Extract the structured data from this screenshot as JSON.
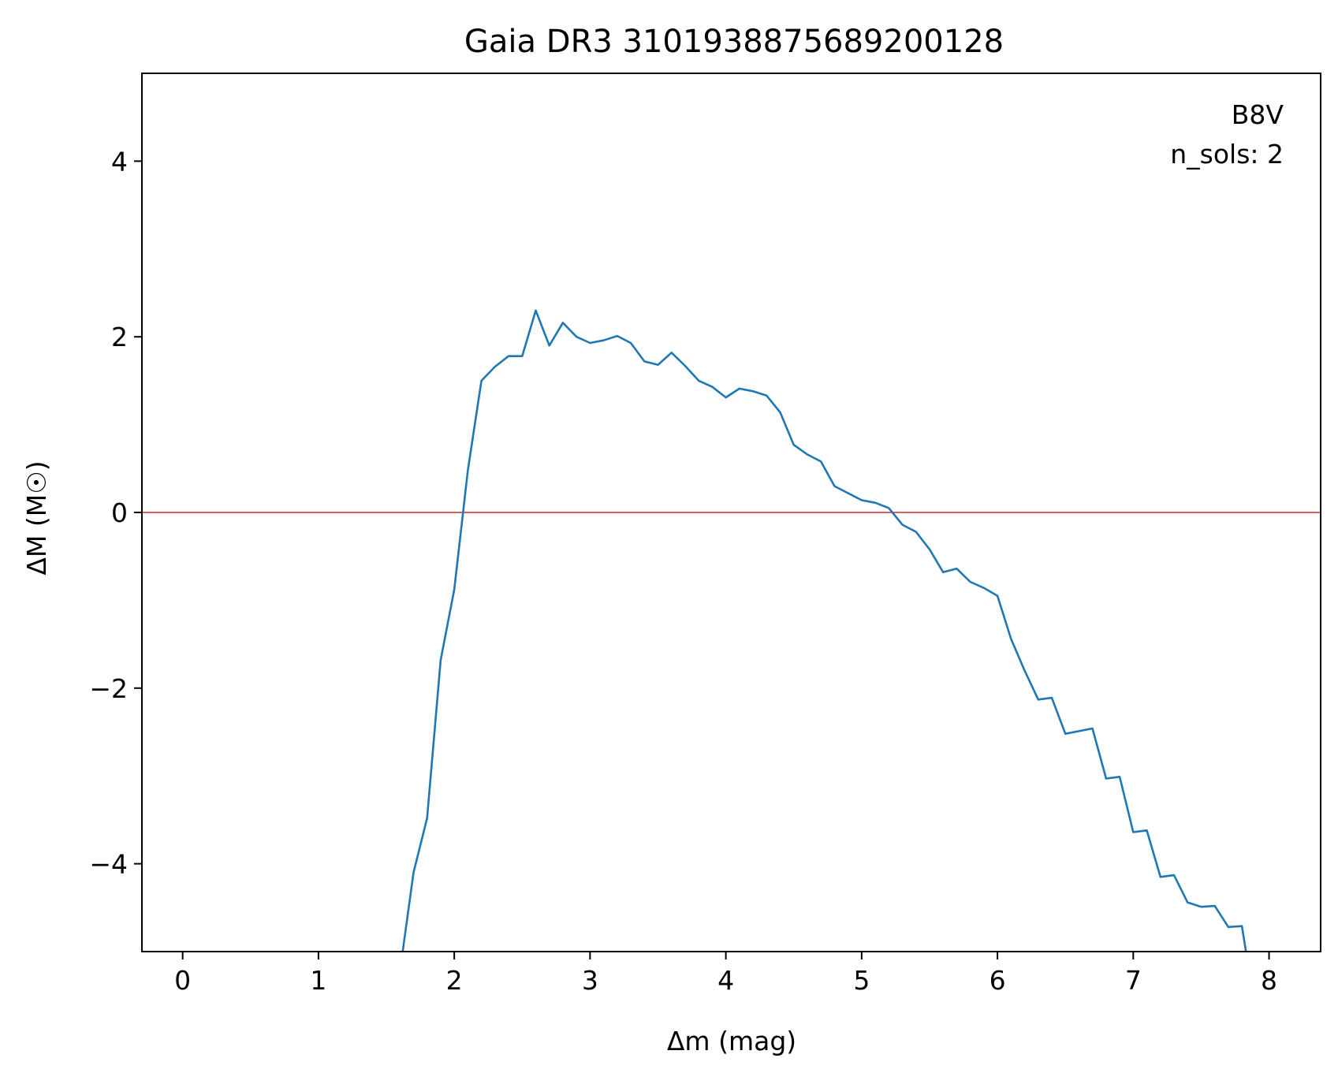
{
  "chart_data": {
    "type": "line",
    "title": "Gaia DR3 3101938875689200128",
    "xlabel": "Δm (mag)",
    "ylabel": "ΔM (M☉)",
    "xlim": [
      -0.3,
      8.38
    ],
    "ylim": [
      -5,
      5
    ],
    "xticks": [
      0,
      1,
      2,
      3,
      4,
      5,
      6,
      7,
      8
    ],
    "yticks": [
      -4,
      -2,
      0,
      2,
      4
    ],
    "xtick_labels": [
      "0",
      "1",
      "2",
      "3",
      "4",
      "5",
      "6",
      "7",
      "8"
    ],
    "ytick_labels": [
      "−4",
      "−2",
      "0",
      "2",
      "4"
    ],
    "grid": false,
    "annotations": [
      "B8V",
      "n_sols: 2"
    ],
    "reference_line": {
      "y": 0,
      "color": "#d62728"
    },
    "series": [
      {
        "color": "#1f77b4",
        "x": [
          1.62,
          1.7,
          1.8,
          1.9,
          2.0,
          2.1,
          2.2,
          2.3,
          2.4,
          2.5,
          2.6,
          2.7,
          2.8,
          2.9,
          3.0,
          3.1,
          3.2,
          3.3,
          3.4,
          3.5,
          3.6,
          3.7,
          3.8,
          3.9,
          4.0,
          4.1,
          4.2,
          4.3,
          4.4,
          4.5,
          4.6,
          4.7,
          4.8,
          4.9,
          5.0,
          5.1,
          5.2,
          5.3,
          5.4,
          5.5,
          5.6,
          5.7,
          5.8,
          5.9,
          6.0,
          6.1,
          6.2,
          6.3,
          6.4,
          6.5,
          6.6,
          6.7,
          6.8,
          6.9,
          7.0,
          7.1,
          7.2,
          7.3,
          7.4,
          7.5,
          7.6,
          7.7,
          7.8,
          7.83
        ],
        "y": [
          -5.0,
          -4.1,
          -3.48,
          -1.68,
          -0.88,
          0.48,
          1.5,
          1.66,
          1.78,
          1.78,
          2.3,
          1.9,
          2.16,
          2.0,
          1.93,
          1.96,
          2.01,
          1.93,
          1.72,
          1.68,
          1.82,
          1.67,
          1.5,
          1.43,
          1.31,
          1.41,
          1.38,
          1.33,
          1.14,
          0.77,
          0.66,
          0.58,
          0.3,
          0.22,
          0.14,
          0.11,
          0.05,
          -0.14,
          -0.22,
          -0.42,
          -0.68,
          -0.64,
          -0.79,
          -0.86,
          -0.95,
          -1.44,
          -1.8,
          -2.13,
          -2.11,
          -2.52,
          -2.49,
          -2.46,
          -3.03,
          -3.01,
          -3.64,
          -3.62,
          -4.15,
          -4.13,
          -4.44,
          -4.49,
          -4.48,
          -4.72,
          -4.71,
          -5.0
        ]
      }
    ]
  }
}
